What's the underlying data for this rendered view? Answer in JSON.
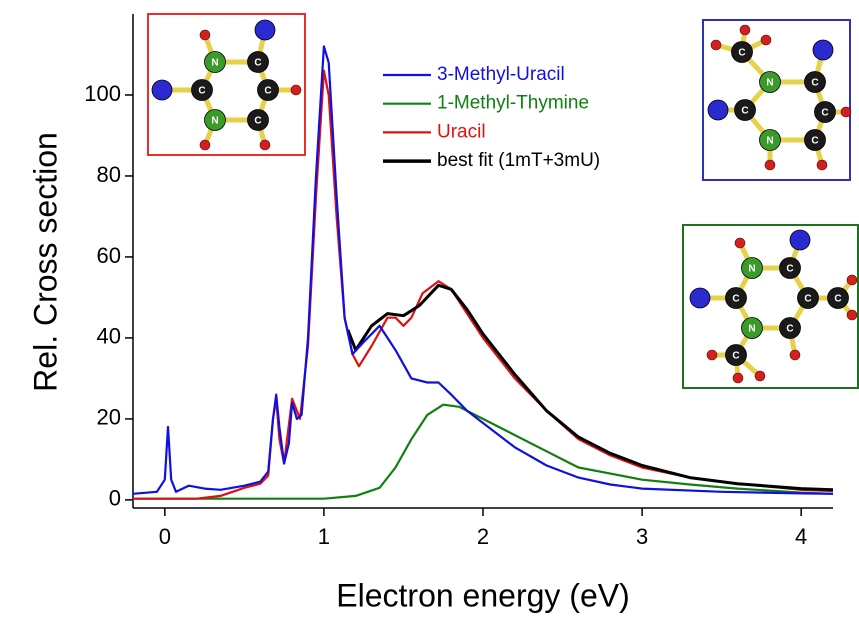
{
  "chart_data": {
    "type": "line",
    "x_label": "Electron energy (eV)",
    "y_label": "Rel. Cross section",
    "xlim": [
      -0.2,
      4.2
    ],
    "ylim": [
      -2,
      120
    ],
    "xticks": [
      0,
      1,
      2,
      3,
      4
    ],
    "yticks": [
      0,
      20,
      40,
      60,
      80,
      100
    ],
    "series": [
      {
        "name": "3-Methyl-Uracil",
        "color": "#1010e0",
        "x": [
          -0.2,
          -0.05,
          0.0,
          0.02,
          0.04,
          0.07,
          0.15,
          0.25,
          0.35,
          0.5,
          0.6,
          0.65,
          0.68,
          0.7,
          0.72,
          0.75,
          0.78,
          0.8,
          0.83,
          0.86,
          0.9,
          0.95,
          1.0,
          1.03,
          1.08,
          1.13,
          1.18,
          1.25,
          1.35,
          1.45,
          1.55,
          1.65,
          1.72,
          1.8,
          1.9,
          2.0,
          2.2,
          2.4,
          2.6,
          2.8,
          3.0,
          3.5,
          4.0,
          4.2
        ],
        "values": [
          1.5,
          2,
          5,
          18,
          5,
          2,
          3.5,
          2.8,
          2.5,
          3.5,
          4.5,
          7,
          20,
          26,
          18,
          9,
          14,
          24,
          20,
          21,
          40,
          80,
          112,
          108,
          75,
          45,
          36,
          39,
          43,
          37,
          30,
          29,
          29,
          26,
          22,
          19,
          13,
          8.5,
          5.5,
          3.8,
          2.8,
          2.0,
          1.6,
          1.5
        ]
      },
      {
        "name": "1-Methyl-Thymine",
        "color": "#108010",
        "x": [
          -0.2,
          1.0,
          1.2,
          1.35,
          1.45,
          1.55,
          1.65,
          1.75,
          1.85,
          2.0,
          2.2,
          2.4,
          2.55,
          2.6,
          2.8,
          3.0,
          3.3,
          3.6,
          4.0,
          4.2
        ],
        "values": [
          0.3,
          0.3,
          1,
          3,
          8,
          15,
          21,
          23.5,
          23,
          20,
          16,
          12,
          9,
          8,
          6.5,
          5,
          3.8,
          2.8,
          1.8,
          1.5
        ]
      },
      {
        "name": "Uracil",
        "color": "#e01010",
        "x": [
          -0.2,
          0.2,
          0.35,
          0.5,
          0.6,
          0.65,
          0.68,
          0.7,
          0.72,
          0.75,
          0.8,
          0.85,
          0.9,
          0.95,
          1.0,
          1.03,
          1.08,
          1.13,
          1.18,
          1.22,
          1.3,
          1.4,
          1.45,
          1.5,
          1.55,
          1.62,
          1.72,
          1.8,
          1.9,
          2.0,
          2.2,
          2.4,
          2.6,
          2.8,
          3.0,
          3.3,
          3.6,
          4.0,
          4.2
        ],
        "values": [
          0.3,
          0.3,
          1,
          3,
          4,
          6,
          20,
          25,
          15,
          9,
          25,
          20,
          38,
          75,
          106,
          100,
          70,
          45,
          36,
          33,
          38,
          45,
          45,
          43,
          45,
          51,
          54,
          52,
          46,
          40,
          30,
          22,
          15,
          11,
          8,
          5.5,
          4,
          2.5,
          2.2
        ]
      },
      {
        "name": "best fit (1mT+3mU)",
        "color": "#000000",
        "x": [
          1.15,
          1.2,
          1.3,
          1.4,
          1.5,
          1.6,
          1.72,
          1.8,
          1.9,
          2.0,
          2.2,
          2.4,
          2.6,
          2.8,
          3.0,
          3.3,
          3.6,
          4.0,
          4.2
        ],
        "values": [
          42,
          37,
          43,
          46,
          45.5,
          48,
          53,
          52,
          47,
          41,
          31,
          22,
          15.5,
          11.5,
          8.5,
          5.5,
          4,
          2.8,
          2.5
        ]
      }
    ],
    "draw_order": [
      1,
      2,
      3,
      0
    ],
    "insets": [
      {
        "border_color": "#e8302a",
        "atom_labels": [
          "C",
          "N",
          "C",
          "C",
          "C",
          "N"
        ]
      },
      {
        "border_color": "#3030c0",
        "atom_labels": [
          "C",
          "N",
          "C",
          "C",
          "C",
          "N",
          "C"
        ]
      },
      {
        "border_color": "#207020",
        "atom_labels": [
          "C",
          "N",
          "C",
          "C",
          "C",
          "N",
          "C",
          "C"
        ]
      }
    ]
  }
}
